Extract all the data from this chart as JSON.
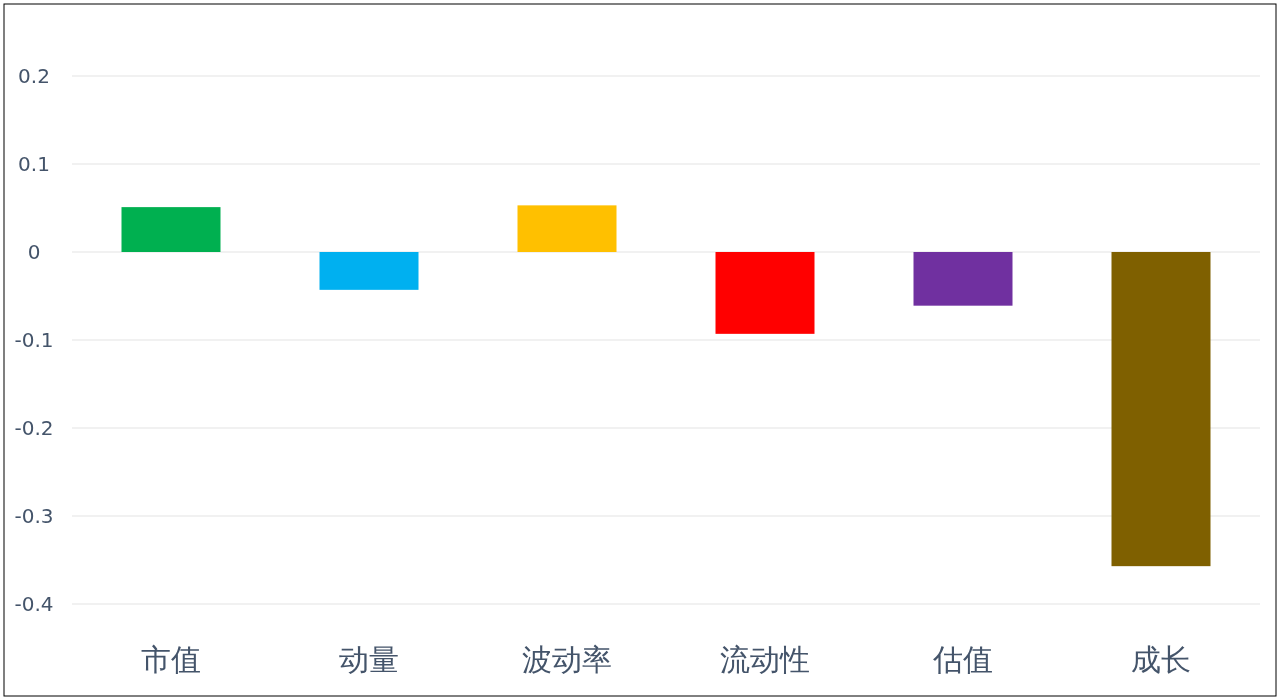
{
  "chart_data": {
    "type": "bar",
    "categories": [
      "市值",
      "动量",
      "波动率",
      "流动性",
      "估值",
      "成长"
    ],
    "values": [
      0.051,
      -0.043,
      0.053,
      -0.093,
      -0.061,
      -0.357
    ],
    "colors": [
      "#00b050",
      "#00b0f0",
      "#ffc000",
      "#ff0000",
      "#7030a0",
      "#7f6000"
    ],
    "ylim": [
      -0.4,
      0.2
    ],
    "yticks": [
      {
        "value": -0.4,
        "label": "-0.4"
      },
      {
        "value": -0.3,
        "label": "-0.3"
      },
      {
        "value": -0.2,
        "label": "-0.2"
      },
      {
        "value": -0.1,
        "label": "-0.1"
      },
      0,
      0.1,
      0.2
    ],
    "grid": "y"
  }
}
